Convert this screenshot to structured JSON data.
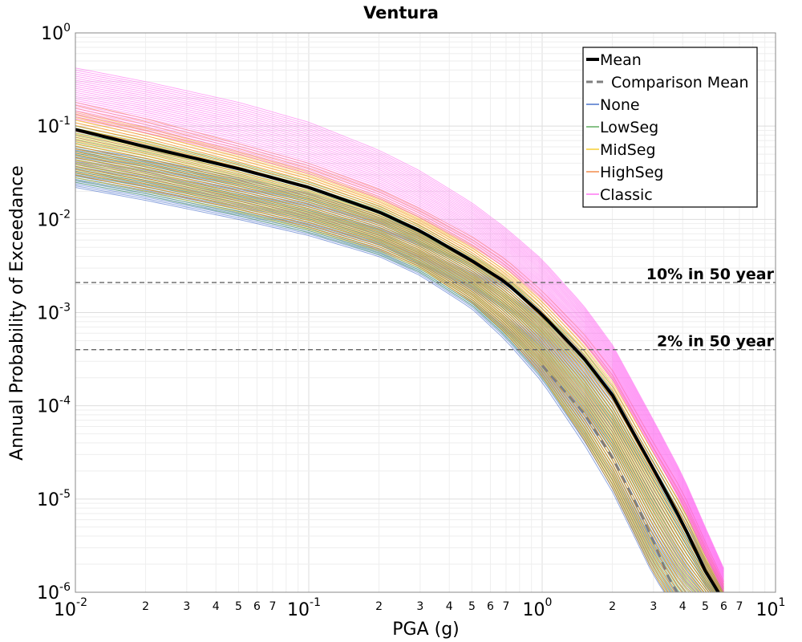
{
  "chart_data": {
    "type": "line",
    "title": "Ventura",
    "xlabel": "PGA (g)",
    "ylabel": "Annual Probability of Exceedance",
    "x_scale": "log",
    "y_scale": "log",
    "xlim": [
      0.01,
      10
    ],
    "ylim": [
      1e-06,
      1
    ],
    "grid": true,
    "legend_position": "top-right",
    "x_decade_labels": [
      {
        "base": "10",
        "exp": "-2"
      },
      {
        "base": "10",
        "exp": "-1"
      },
      {
        "base": "10",
        "exp": "0"
      },
      {
        "base": "10",
        "exp": "1"
      }
    ],
    "y_decade_labels": [
      {
        "base": "10",
        "exp": "0"
      },
      {
        "base": "10",
        "exp": "-1"
      },
      {
        "base": "10",
        "exp": "-2"
      },
      {
        "base": "10",
        "exp": "-3"
      },
      {
        "base": "10",
        "exp": "-4"
      },
      {
        "base": "10",
        "exp": "-5"
      },
      {
        "base": "10",
        "exp": "-6"
      }
    ],
    "x_minor_tick_labels": [
      "2",
      "3",
      "4",
      "5",
      "6",
      "7"
    ],
    "reference_lines": [
      {
        "label": "10% in 50 year",
        "y": 0.0021
      },
      {
        "label": "2% in 50 year",
        "y": 0.0004
      }
    ],
    "legend": [
      {
        "label": "Mean",
        "color": "#000000",
        "style": "solid-thick"
      },
      {
        "label": "Comparison Mean",
        "color": "#7f7f7f",
        "style": "dashed"
      },
      {
        "label": "None",
        "color": "#1f4fbf",
        "style": "solid"
      },
      {
        "label": "LowSeg",
        "color": "#3a9a3a",
        "style": "solid"
      },
      {
        "label": "MidSeg",
        "color": "#f2c200",
        "style": "solid"
      },
      {
        "label": "HighSeg",
        "color": "#f07020",
        "style": "solid"
      },
      {
        "label": "Classic",
        "color": "#ff55ee",
        "style": "solid"
      }
    ],
    "series": [
      {
        "name": "Mean",
        "x": [
          0.01,
          0.02,
          0.05,
          0.1,
          0.2,
          0.3,
          0.5,
          0.7,
          1.0,
          1.5,
          2.0,
          3.0,
          4.0,
          5.0,
          6.0
        ],
        "y": [
          0.092,
          0.06,
          0.035,
          0.022,
          0.012,
          0.0075,
          0.0036,
          0.0021,
          0.00095,
          0.00033,
          0.00013,
          2.1e-05,
          5.5e-06,
          1.7e-06,
          8e-07
        ]
      },
      {
        "name": "Comparison Mean",
        "x": [
          1.0,
          1.5,
          2.0,
          2.5,
          3.0,
          3.5,
          4.0
        ],
        "y": [
          0.00027,
          8.5e-05,
          2.8e-05,
          9.5e-06,
          3.5e-06,
          1.4e-06,
          8e-07
        ]
      },
      {
        "name": "None",
        "band": true,
        "x": [
          0.01,
          0.02,
          0.05,
          0.1,
          0.2,
          0.3,
          0.5,
          0.7,
          1.0,
          1.5,
          2.0,
          3.0,
          4.0,
          5.0,
          6.0
        ],
        "y_low": [
          0.022,
          0.016,
          0.01,
          0.0067,
          0.004,
          0.0025,
          0.0011,
          0.0005,
          0.00018,
          4e-05,
          1.2e-05,
          1.5e-06,
          5e-07,
          4e-07,
          3e-07
        ],
        "y_high": [
          0.06,
          0.045,
          0.028,
          0.019,
          0.011,
          0.0072,
          0.0036,
          0.0021,
          0.001,
          0.00035,
          0.00014,
          2.5e-05,
          7e-06,
          2.2e-06,
          1e-06
        ]
      },
      {
        "name": "LowSeg",
        "band": true,
        "x": [
          0.01,
          0.02,
          0.05,
          0.1,
          0.2,
          0.3,
          0.5,
          0.7,
          1.0,
          1.5,
          2.0,
          3.0,
          4.0,
          5.0,
          6.0
        ],
        "y_low": [
          0.025,
          0.018,
          0.011,
          0.0072,
          0.0042,
          0.0027,
          0.0012,
          0.00055,
          0.0002,
          4.5e-05,
          1.3e-05,
          1.6e-06,
          5e-07,
          4e-07,
          3e-07
        ],
        "y_high": [
          0.1,
          0.07,
          0.04,
          0.025,
          0.014,
          0.0085,
          0.0042,
          0.0024,
          0.0011,
          0.0004,
          0.00016,
          2.8e-05,
          8e-06,
          2.5e-06,
          1.1e-06
        ]
      },
      {
        "name": "MidSeg",
        "band": true,
        "x": [
          0.01,
          0.02,
          0.05,
          0.1,
          0.2,
          0.3,
          0.5,
          0.7,
          1.0,
          1.5,
          2.0,
          3.0,
          4.0,
          5.0,
          6.0
        ],
        "y_low": [
          0.028,
          0.02,
          0.012,
          0.0078,
          0.0046,
          0.003,
          0.0013,
          0.0006,
          0.00021,
          4.7e-05,
          1.4e-05,
          1.7e-06,
          5e-07,
          4e-07,
          3e-07
        ],
        "y_high": [
          0.14,
          0.095,
          0.052,
          0.032,
          0.017,
          0.0105,
          0.0052,
          0.003,
          0.0014,
          0.0005,
          0.0002,
          3.5e-05,
          1e-05,
          3e-06,
          1.2e-06
        ]
      },
      {
        "name": "HighSeg",
        "band": true,
        "x": [
          0.01,
          0.02,
          0.05,
          0.1,
          0.2,
          0.3,
          0.5,
          0.7,
          1.0,
          1.5,
          2.0,
          3.0,
          4.0,
          5.0,
          6.0
        ],
        "y_low": [
          0.03,
          0.021,
          0.013,
          0.0082,
          0.0048,
          0.0031,
          0.0013,
          0.0006,
          0.00021,
          4.5e-05,
          1.3e-05,
          1.6e-06,
          5e-07,
          4e-07,
          3e-07
        ],
        "y_high": [
          0.18,
          0.12,
          0.065,
          0.04,
          0.021,
          0.013,
          0.0065,
          0.0037,
          0.0017,
          0.0006,
          0.00024,
          4e-05,
          1.2e-05,
          3.5e-06,
          1.3e-06
        ]
      },
      {
        "name": "Classic",
        "band": true,
        "x": [
          0.01,
          0.02,
          0.05,
          0.1,
          0.2,
          0.3,
          0.5,
          0.7,
          1.0,
          1.5,
          2.0,
          3.0,
          4.0,
          5.0,
          6.0
        ],
        "y_low": [
          0.12,
          0.085,
          0.05,
          0.031,
          0.017,
          0.0105,
          0.0052,
          0.003,
          0.0014,
          0.00048,
          0.00019,
          3.2e-05,
          8.5e-06,
          2.5e-06,
          1e-06
        ],
        "y_high": [
          0.42,
          0.3,
          0.18,
          0.11,
          0.055,
          0.033,
          0.015,
          0.008,
          0.0037,
          0.0012,
          0.00045,
          7e-05,
          1.8e-05,
          5e-06,
          1.8e-06
        ]
      }
    ]
  }
}
